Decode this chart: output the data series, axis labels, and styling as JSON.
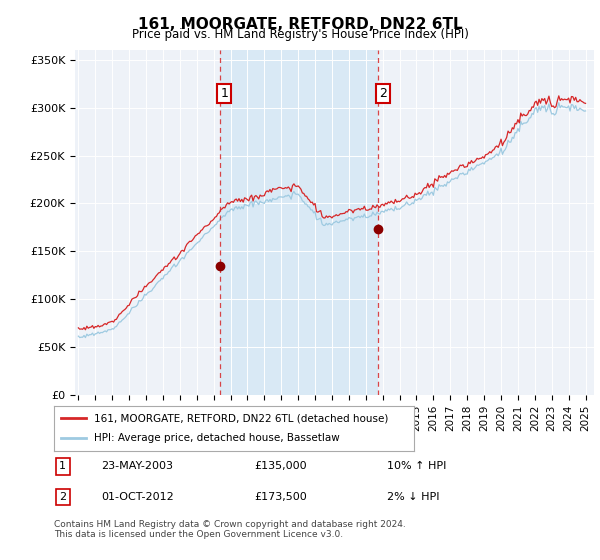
{
  "title": "161, MOORGATE, RETFORD, DN22 6TL",
  "subtitle": "Price paid vs. HM Land Registry's House Price Index (HPI)",
  "ylabel_ticks": [
    "£0",
    "£50K",
    "£100K",
    "£150K",
    "£200K",
    "£250K",
    "£300K",
    "£350K"
  ],
  "ytick_vals": [
    0,
    50000,
    100000,
    150000,
    200000,
    250000,
    300000,
    350000
  ],
  "ylim": [
    0,
    360000
  ],
  "sale1": {
    "date_num": 2003.38,
    "price": 135000,
    "label": "1",
    "pct": "10% ↑ HPI",
    "date_str": "23-MAY-2003"
  },
  "sale2": {
    "date_num": 2012.75,
    "price": 173500,
    "label": "2",
    "pct": "2% ↓ HPI",
    "date_str": "01-OCT-2012"
  },
  "hpi_color": "#9ecae1",
  "price_color": "#d62728",
  "sale_dot_color": "#8b0000",
  "vline_color": "#d62728",
  "shade_color": "#d6e8f5",
  "background_color": "#eef2f8",
  "legend_label_price": "161, MOORGATE, RETFORD, DN22 6TL (detached house)",
  "legend_label_hpi": "HPI: Average price, detached house, Bassetlaw",
  "footer": "Contains HM Land Registry data © Crown copyright and database right 2024.\nThis data is licensed under the Open Government Licence v3.0.",
  "xmin": 1994.8,
  "xmax": 2025.5,
  "xtick_years": [
    1995,
    1996,
    1997,
    1998,
    1999,
    2000,
    2001,
    2002,
    2003,
    2004,
    2005,
    2006,
    2007,
    2008,
    2009,
    2010,
    2011,
    2012,
    2013,
    2014,
    2015,
    2016,
    2017,
    2018,
    2019,
    2020,
    2021,
    2022,
    2023,
    2024,
    2025
  ]
}
